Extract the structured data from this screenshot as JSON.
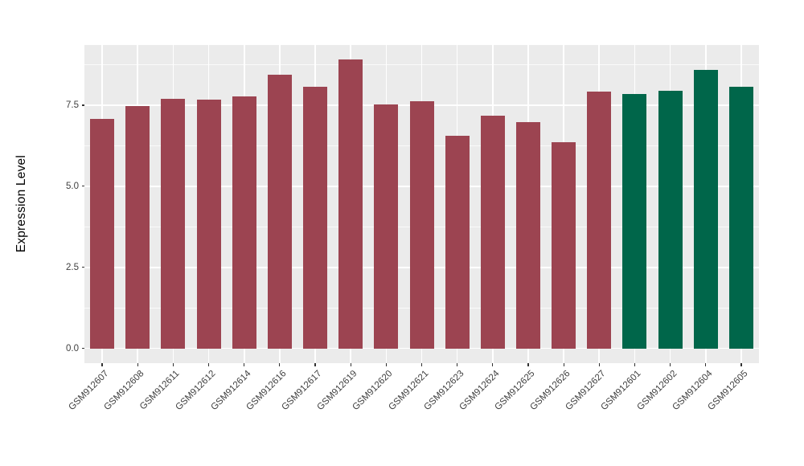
{
  "figure": {
    "background": "#FFFFFF"
  },
  "chart_data": {
    "type": "bar",
    "title": "",
    "xlabel": "",
    "ylabel": "Expression Level",
    "categories": [
      "GSM912607",
      "GSM912608",
      "GSM912611",
      "GSM912612",
      "GSM912614",
      "GSM912616",
      "GSM912617",
      "GSM912619",
      "GSM912620",
      "GSM912621",
      "GSM912623",
      "GSM912624",
      "GSM912625",
      "GSM912626",
      "GSM912627",
      "GSM912601",
      "GSM912602",
      "GSM912604",
      "GSM912605"
    ],
    "values": [
      7.09,
      7.47,
      7.69,
      7.67,
      7.77,
      8.43,
      8.08,
      8.9,
      7.52,
      7.62,
      6.56,
      7.18,
      6.98,
      6.36,
      7.93,
      7.85,
      7.95,
      8.6,
      8.06
    ],
    "color_groups": [
      "maroon",
      "maroon",
      "maroon",
      "maroon",
      "maroon",
      "maroon",
      "maroon",
      "maroon",
      "maroon",
      "maroon",
      "maroon",
      "maroon",
      "maroon",
      "maroon",
      "maroon",
      "green",
      "green",
      "green",
      "green"
    ],
    "palette": {
      "maroon": "#9C4451",
      "green": "#00664A"
    },
    "panel_background": "#EBEBEB",
    "gridline_color": "#FFFFFF",
    "axis_text_color": "#404040",
    "y_ticks": [
      {
        "value": 0,
        "label": "0.0"
      },
      {
        "value": 2.5,
        "label": "2.5"
      },
      {
        "value": 5,
        "label": "5.0"
      },
      {
        "value": 7.5,
        "label": "7.5"
      }
    ],
    "y_minor_ticks": [
      1.25,
      3.75,
      6.25,
      8.75
    ],
    "ylim": [
      -0.45,
      9.36
    ],
    "x_tick_rotation_deg": 45,
    "grid": "white major and minor horizontal lines plus vertical category lines on gray panel",
    "legend": "none"
  }
}
